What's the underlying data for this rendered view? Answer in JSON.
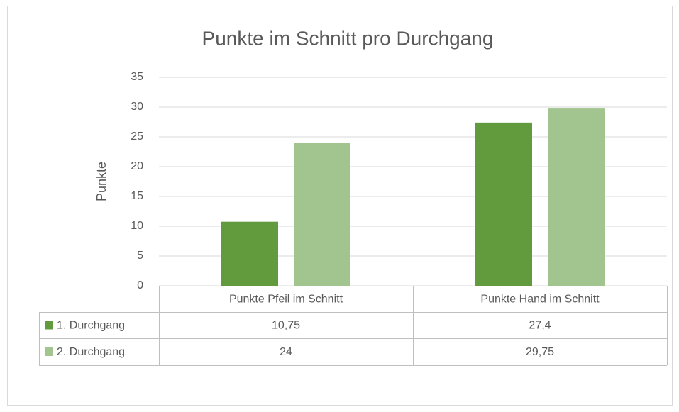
{
  "chart_data": {
    "type": "bar",
    "title": "Punkte im Schnitt pro Durchgang",
    "y_label": "Punkte",
    "categories": [
      "Punkte Pfeil im Schnitt",
      "Punkte Hand im Schnitt"
    ],
    "series": [
      {
        "name": "1. Durchgang",
        "color": "#629b3d",
        "values": [
          10.75,
          27.4
        ],
        "value_labels": [
          "10,75",
          "27,4"
        ]
      },
      {
        "name": "2. Durchgang",
        "color": "#a2c48e",
        "values": [
          24,
          29.75
        ],
        "value_labels": [
          "24",
          "29,75"
        ]
      }
    ],
    "ylim": [
      0,
      35
    ],
    "yticks": [
      0,
      5,
      10,
      15,
      20,
      25,
      30,
      35
    ],
    "grid": true
  }
}
